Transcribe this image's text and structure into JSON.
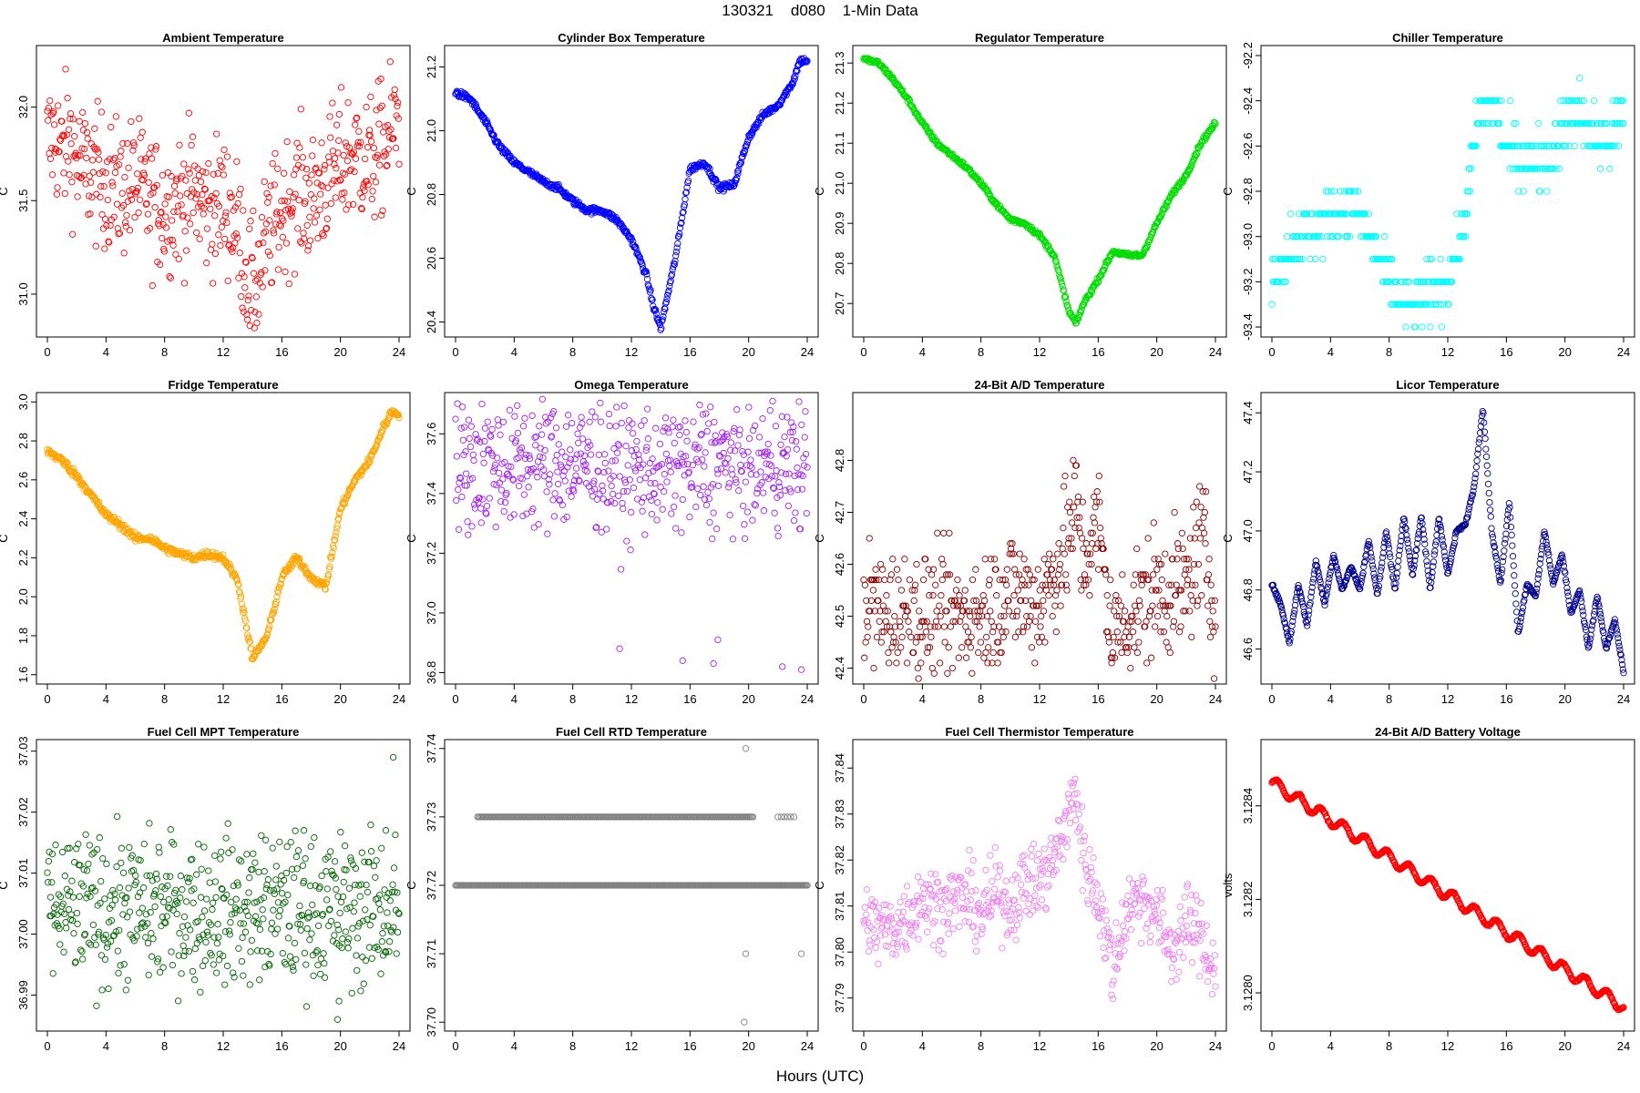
{
  "figure": {
    "title": "130321    d080    1-Min Data",
    "xlabel": "Hours (UTC)"
  },
  "chart_data": [
    {
      "type": "scatter",
      "title": "Ambient Temperature",
      "ylabel": "C",
      "color": "#ff0000",
      "xlim": [
        0,
        24
      ],
      "ylim": [
        30.8,
        32.3
      ],
      "xticks": [
        0,
        4,
        8,
        12,
        16,
        20,
        24
      ],
      "yticks": [
        31.0,
        31.5,
        32.0
      ],
      "ytick_labels": [
        "31.0",
        "31.5",
        "32.0"
      ],
      "x": [
        0,
        0.5,
        1,
        1.5,
        2,
        3,
        4,
        5,
        6,
        7,
        8,
        9,
        10,
        11,
        12,
        13,
        14,
        14.5,
        15,
        16,
        17,
        18,
        19,
        20,
        21,
        22,
        23,
        24
      ],
      "y": [
        31.8,
        31.85,
        31.75,
        31.85,
        31.7,
        31.65,
        31.6,
        31.55,
        31.6,
        31.5,
        31.45,
        31.5,
        31.55,
        31.45,
        31.5,
        31.35,
        31.0,
        31.15,
        31.3,
        31.45,
        31.55,
        31.5,
        31.6,
        31.7,
        31.75,
        31.7,
        31.8,
        31.95
      ],
      "noise": 0.35
    },
    {
      "type": "scatter",
      "title": "Cylinder Box Temperature",
      "ylabel": "C",
      "color": "#0000ff",
      "xlim": [
        0,
        24
      ],
      "ylim": [
        20.37,
        21.25
      ],
      "xticks": [
        0,
        4,
        8,
        12,
        16,
        20,
        24
      ],
      "yticks": [
        20.4,
        20.6,
        20.8,
        21.0,
        21.2
      ],
      "ytick_labels": [
        "20.4",
        "20.6",
        "20.8",
        "21.0",
        "21.2"
      ],
      "x": [
        0,
        1,
        2,
        3,
        4,
        5,
        6,
        7,
        8,
        9,
        10,
        11,
        12,
        13,
        13.5,
        14,
        15,
        16,
        17,
        18,
        19,
        20,
        21,
        22,
        23,
        23.5,
        24
      ],
      "y": [
        21.12,
        21.1,
        21.03,
        20.95,
        20.9,
        20.87,
        20.84,
        20.82,
        20.78,
        20.75,
        20.75,
        20.72,
        20.66,
        20.55,
        20.45,
        20.38,
        20.6,
        20.88,
        20.9,
        20.82,
        20.83,
        20.98,
        21.05,
        21.08,
        21.15,
        21.22,
        21.22
      ],
      "noise": 0.01
    },
    {
      "type": "scatter",
      "title": "Regulator Temperature",
      "ylabel": "C",
      "color": "#00dd00",
      "xlim": [
        0,
        24
      ],
      "ylim": [
        20.63,
        21.33
      ],
      "xticks": [
        0,
        4,
        8,
        12,
        16,
        20,
        24
      ],
      "yticks": [
        20.7,
        20.8,
        20.9,
        21.0,
        21.1,
        21.2,
        21.3
      ],
      "ytick_labels": [
        "20.7",
        "20.8",
        "20.9",
        "21.0",
        "21.1",
        "21.2",
        "21.3"
      ],
      "x": [
        0,
        1,
        2,
        3,
        4,
        5,
        6,
        7,
        8,
        9,
        10,
        11,
        12,
        13,
        14,
        14.5,
        15,
        16,
        17,
        18,
        19,
        20,
        21,
        22,
        23,
        24
      ],
      "y": [
        21.31,
        21.3,
        21.26,
        21.21,
        21.15,
        21.1,
        21.07,
        21.04,
        21.0,
        20.95,
        20.91,
        20.9,
        20.87,
        20.82,
        20.68,
        20.65,
        20.7,
        20.76,
        20.83,
        20.82,
        20.82,
        20.9,
        20.97,
        21.02,
        21.1,
        21.15
      ],
      "noise": 0.006
    },
    {
      "type": "scatter",
      "title": "Chiller Temperature",
      "ylabel": "C",
      "color": "#00ffff",
      "xlim": [
        0,
        24
      ],
      "ylim": [
        -93.42,
        -92.18
      ],
      "xticks": [
        0,
        4,
        8,
        12,
        16,
        20,
        24
      ],
      "yticks": [
        -93.4,
        -93.2,
        -93.0,
        -92.8,
        -92.6,
        -92.4,
        -92.2
      ],
      "ytick_labels": [
        "-93.4",
        "-93.2",
        "-93.0",
        "-92.8",
        "-92.6",
        "-92.4",
        "-92.2"
      ],
      "quantum": 0.1,
      "x": [
        0,
        1,
        2,
        3,
        4,
        5,
        6,
        7,
        8,
        9,
        10,
        11,
        12,
        13,
        14,
        15,
        16,
        17,
        18,
        19,
        20,
        21,
        22,
        23,
        24
      ],
      "y": [
        -93.2,
        -93.05,
        -93.0,
        -92.97,
        -92.9,
        -92.88,
        -92.9,
        -93.05,
        -93.2,
        -93.3,
        -93.3,
        -93.25,
        -93.2,
        -93.0,
        -92.5,
        -92.4,
        -92.6,
        -92.65,
        -92.65,
        -92.65,
        -92.5,
        -92.45,
        -92.55,
        -92.6,
        -92.45
      ],
      "noise": 0.12
    },
    {
      "type": "scatter",
      "title": "Fridge Temperature",
      "ylabel": "C",
      "color": "#ffa500",
      "xlim": [
        0,
        24
      ],
      "ylim": [
        1.58,
        3.02
      ],
      "xticks": [
        0,
        4,
        8,
        12,
        16,
        20,
        24
      ],
      "yticks": [
        1.6,
        1.8,
        2.0,
        2.2,
        2.4,
        2.6,
        2.8,
        3.0
      ],
      "ytick_labels": [
        "1.6",
        "1.8",
        "2.0",
        "2.2",
        "2.4",
        "2.6",
        "2.8",
        "3.0"
      ],
      "x": [
        0,
        1,
        2,
        3,
        4,
        5,
        6,
        7,
        8,
        9,
        10,
        11,
        12,
        13,
        14,
        15,
        16,
        17,
        18,
        19,
        20,
        21,
        22,
        23,
        23.5,
        24
      ],
      "y": [
        2.75,
        2.7,
        2.62,
        2.52,
        2.42,
        2.37,
        2.3,
        2.3,
        2.25,
        2.22,
        2.2,
        2.22,
        2.2,
        2.08,
        1.68,
        1.8,
        2.1,
        2.2,
        2.1,
        2.05,
        2.45,
        2.6,
        2.7,
        2.88,
        2.95,
        2.94
      ],
      "noise": 0.02
    },
    {
      "type": "scatter",
      "title": "Omega Temperature",
      "ylabel": "C",
      "color": "#a020f0",
      "xlim": [
        0,
        24
      ],
      "ylim": [
        36.78,
        37.72
      ],
      "xticks": [
        0,
        4,
        8,
        12,
        16,
        20,
        24
      ],
      "yticks": [
        36.8,
        37.0,
        37.2,
        37.4,
        37.6
      ],
      "ytick_labels": [
        "36.8",
        "37.0",
        "37.2",
        "37.4",
        "37.6"
      ],
      "x": [
        0,
        2,
        4,
        6,
        8,
        10,
        12,
        14,
        16,
        18,
        20,
        22,
        24
      ],
      "y": [
        37.48,
        37.5,
        37.5,
        37.5,
        37.5,
        37.5,
        37.47,
        37.5,
        37.5,
        37.5,
        37.5,
        37.5,
        37.48
      ],
      "noise": 0.22,
      "outliers": [
        [
          11.2,
          36.88
        ],
        [
          15.5,
          36.84
        ],
        [
          17.9,
          36.91
        ],
        [
          17.6,
          36.83
        ],
        [
          22.3,
          36.82
        ],
        [
          23.6,
          36.81
        ]
      ]
    },
    {
      "type": "scatter",
      "title": "24-Bit A/D Temperature",
      "ylabel": "C",
      "color": "#8b0000",
      "xlim": [
        0,
        24
      ],
      "ylim": [
        42.38,
        42.92
      ],
      "xticks": [
        0,
        4,
        8,
        12,
        16,
        20,
        24
      ],
      "yticks": [
        42.4,
        42.5,
        42.6,
        42.7,
        42.8
      ],
      "ytick_labels": [
        "42.4",
        "42.5",
        "42.6",
        "42.7",
        "42.8"
      ],
      "quantum": 0.01,
      "x": [
        0,
        2,
        4,
        6,
        8,
        10,
        12,
        14,
        14.5,
        15,
        16,
        17,
        18,
        20,
        22,
        23,
        24
      ],
      "y": [
        42.53,
        42.5,
        42.5,
        42.5,
        42.5,
        42.55,
        42.52,
        42.65,
        42.72,
        42.6,
        42.68,
        42.45,
        42.5,
        42.55,
        42.55,
        42.65,
        42.52
      ],
      "noise": 0.12
    },
    {
      "type": "scatter",
      "title": "Licor Temperature",
      "ylabel": "C",
      "color": "#00008b",
      "xlim": [
        0,
        24
      ],
      "ylim": [
        46.5,
        47.45
      ],
      "xticks": [
        0,
        4,
        8,
        12,
        16,
        20,
        24
      ],
      "yticks": [
        46.6,
        46.8,
        47.0,
        47.2,
        47.4
      ],
      "ytick_labels": [
        "46.6",
        "46.8",
        "47.0",
        "47.2",
        "47.4"
      ],
      "x": [
        0,
        0.6,
        1.2,
        1.8,
        2.4,
        3,
        3.6,
        4.2,
        4.8,
        5.4,
        6,
        6.6,
        7.2,
        7.8,
        8.4,
        9,
        9.6,
        10.2,
        10.8,
        11.4,
        12,
        12.6,
        13.2,
        13.8,
        14.4,
        15,
        15.6,
        16.2,
        16.8,
        17.4,
        18,
        18.6,
        19.2,
        19.8,
        20.4,
        21,
        21.6,
        22.2,
        22.8,
        23.4,
        24
      ],
      "y": [
        46.82,
        46.75,
        46.62,
        46.82,
        46.68,
        46.9,
        46.75,
        46.92,
        46.8,
        46.88,
        46.8,
        46.97,
        46.78,
        47.0,
        46.8,
        47.05,
        46.85,
        47.05,
        46.8,
        47.05,
        46.85,
        47.0,
        47.02,
        47.15,
        47.42,
        47.0,
        46.82,
        47.1,
        46.65,
        46.82,
        46.78,
        47.0,
        46.82,
        46.92,
        46.72,
        46.8,
        46.6,
        46.78,
        46.6,
        46.7,
        46.52
      ],
      "noise": 0.006
    },
    {
      "type": "scatter",
      "title": "Fuel Cell MPT Temperature",
      "ylabel": "C",
      "color": "#006400",
      "xlim": [
        0,
        24
      ],
      "ylim": [
        36.985,
        37.031
      ],
      "xticks": [
        0,
        4,
        8,
        12,
        16,
        20,
        24
      ],
      "yticks": [
        36.99,
        37.0,
        37.01,
        37.02,
        37.03
      ],
      "ytick_labels": [
        "36.99",
        "37.00",
        "37.01",
        "37.02",
        "37.03"
      ],
      "x": [
        0,
        12,
        24
      ],
      "y": [
        37.004,
        37.004,
        37.004
      ],
      "noise": 0.012,
      "outliers": [
        [
          19.8,
          36.986
        ],
        [
          19.9,
          36.989
        ],
        [
          23.6,
          37.029
        ],
        [
          23.1,
          37.017
        ],
        [
          17.5,
          37.017
        ]
      ]
    },
    {
      "type": "scatter",
      "title": "Fuel Cell RTD Temperature",
      "ylabel": "C",
      "color": "#808080",
      "xlim": [
        0,
        24
      ],
      "ylim": [
        37.6995,
        37.7405
      ],
      "xticks": [
        0,
        4,
        8,
        12,
        16,
        20,
        24
      ],
      "yticks": [
        37.7,
        37.71,
        37.72,
        37.73,
        37.74
      ],
      "ytick_labels": [
        "37.70",
        "37.71",
        "37.72",
        "37.73",
        "37.74"
      ],
      "levels": [
        [
          37.72,
          0,
          24,
          340
        ],
        [
          37.73,
          1.5,
          20.3,
          230
        ],
        [
          37.73,
          22,
          23.1,
          6
        ]
      ],
      "outliers": [
        [
          19.8,
          37.74
        ],
        [
          19.8,
          37.71
        ],
        [
          23.6,
          37.71
        ],
        [
          19.7,
          37.7
        ]
      ]
    },
    {
      "type": "scatter",
      "title": "Fuel Cell Thermistor Temperature",
      "ylabel": "C",
      "color": "#ee82ee",
      "xlim": [
        0,
        24
      ],
      "ylim": [
        37.784,
        37.845
      ],
      "xticks": [
        0,
        4,
        8,
        12,
        16,
        20,
        24
      ],
      "yticks": [
        37.79,
        37.8,
        37.81,
        37.82,
        37.83,
        37.84
      ],
      "ytick_labels": [
        "37.79",
        "37.80",
        "37.81",
        "37.82",
        "37.83",
        "37.84"
      ],
      "x": [
        0,
        1,
        2,
        3,
        4,
        5,
        6,
        7,
        8,
        9,
        10,
        11,
        12,
        13,
        14,
        14.5,
        15,
        16,
        17,
        18,
        19,
        20,
        21,
        22,
        23,
        24
      ],
      "y": [
        37.807,
        37.805,
        37.805,
        37.808,
        37.812,
        37.81,
        37.811,
        37.812,
        37.808,
        37.813,
        37.81,
        37.815,
        37.815,
        37.82,
        37.83,
        37.835,
        37.82,
        37.812,
        37.796,
        37.81,
        37.812,
        37.808,
        37.8,
        37.806,
        37.804,
        37.795
      ],
      "noise": 0.008
    },
    {
      "type": "scatter",
      "title": "24-Bit A/D Battery Voltage",
      "ylabel": "volts",
      "color": "#ff0000",
      "xlim": [
        0,
        24
      ],
      "ylim": [
        3.12793,
        3.12853
      ],
      "xticks": [
        0,
        4,
        8,
        12,
        16,
        20,
        24
      ],
      "yticks": [
        3.128,
        3.1282,
        3.1284
      ],
      "ytick_labels": [
        "3.1280",
        "3.1282",
        "3.1284"
      ],
      "trend": [
        3.12845,
        3.12797
      ],
      "wave": [
        1.2e-05,
        1.5
      ],
      "noise": 2e-06
    }
  ]
}
